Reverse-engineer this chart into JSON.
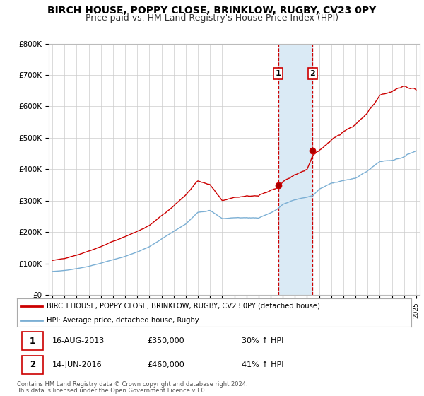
{
  "title": "BIRCH HOUSE, POPPY CLOSE, BRINKLOW, RUGBY, CV23 0PY",
  "subtitle": "Price paid vs. HM Land Registry's House Price Index (HPI)",
  "title_fontsize": 10,
  "subtitle_fontsize": 9,
  "ylim": [
    0,
    800000
  ],
  "yticks": [
    0,
    100000,
    200000,
    300000,
    400000,
    500000,
    600000,
    700000,
    800000
  ],
  "ytick_labels": [
    "£0",
    "£100K",
    "£200K",
    "£300K",
    "£400K",
    "£500K",
    "£600K",
    "£700K",
    "£800K"
  ],
  "sale1_year": 2013.62,
  "sale1_price": 350000,
  "sale2_year": 2016.45,
  "sale2_price": 460000,
  "sale1_date_str": "16-AUG-2013",
  "sale1_price_str": "£350,000",
  "sale1_hpi_str": "30% ↑ HPI",
  "sale2_date_str": "14-JUN-2016",
  "sale2_price_str": "£460,000",
  "sale2_hpi_str": "41% ↑ HPI",
  "line1_color": "#cc0000",
  "line2_color": "#7bafd4",
  "shade_color": "#daeaf5",
  "vline_color": "#cc0000",
  "legend_line1": "BIRCH HOUSE, POPPY CLOSE, BRINKLOW, RUGBY, CV23 0PY (detached house)",
  "legend_line2": "HPI: Average price, detached house, Rugby",
  "footer1": "Contains HM Land Registry data © Crown copyright and database right 2024.",
  "footer2": "This data is licensed under the Open Government Licence v3.0.",
  "bg_color": "#ffffff",
  "grid_color": "#cccccc"
}
